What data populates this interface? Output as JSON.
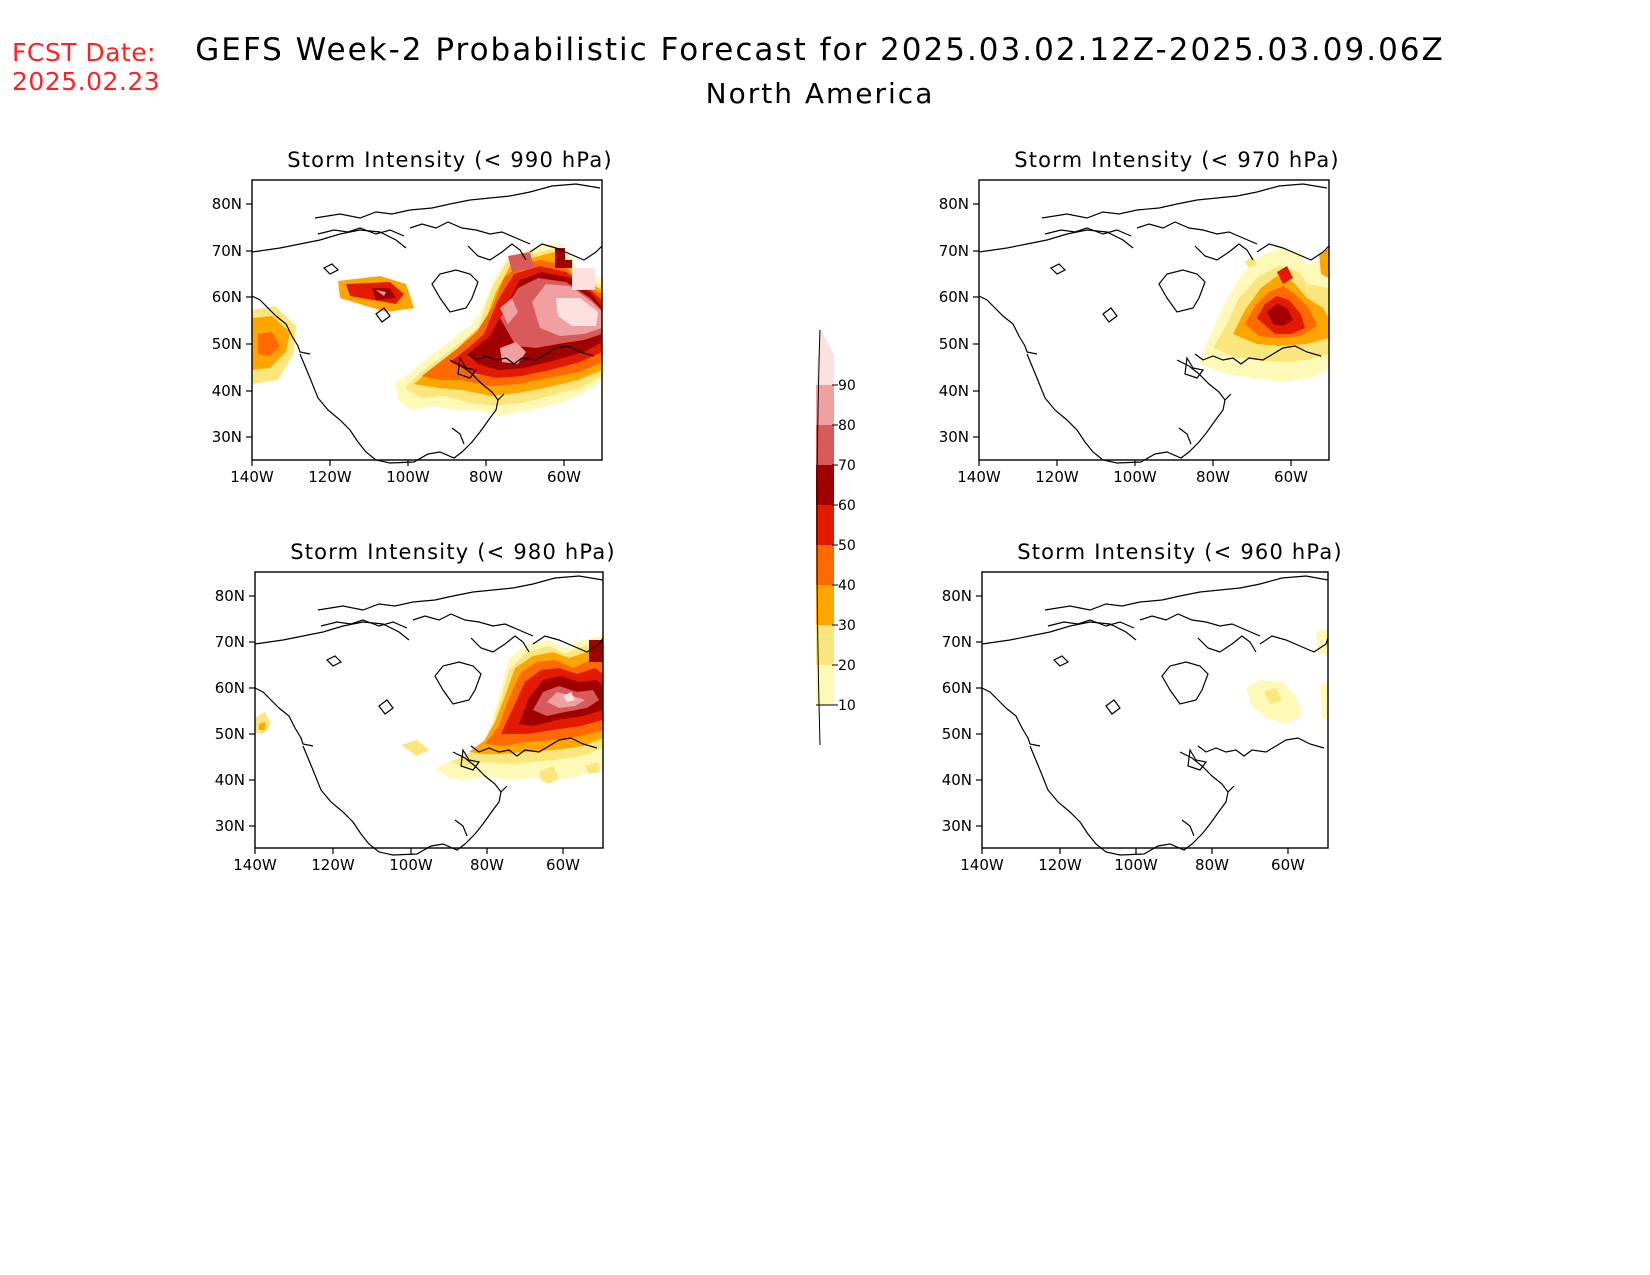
{
  "header": {
    "fcst_line1": "FCST Date:",
    "fcst_line2": "2025.02.23",
    "title": "GEFS Week-2 Probabilistic Forecast for 2025.03.02.12Z-2025.03.09.06Z",
    "subtitle": "North America"
  },
  "colors": {
    "text_red": "#ff2222",
    "levels": [
      "#fff9b8",
      "#fbe67e",
      "#ffa500",
      "#ff6a00",
      "#e21a00",
      "#a00000",
      "#d85a5a",
      "#f0a0a0",
      "#fde0e0"
    ]
  },
  "colorbar": {
    "labels": [
      "10",
      "20",
      "30",
      "40",
      "50",
      "60",
      "70",
      "80",
      "90"
    ]
  },
  "axes": {
    "lat_labels": [
      "80N",
      "70N",
      "60N",
      "50N",
      "40N",
      "30N"
    ],
    "lon_labels": [
      "140W",
      "120W",
      "100W",
      "80W",
      "60W"
    ]
  },
  "panels": [
    {
      "id": "p990",
      "title": "Storm Intensity (< 990 hPa)"
    },
    {
      "id": "p970",
      "title": "Storm Intensity (< 970 hPa)"
    },
    {
      "id": "p980",
      "title": "Storm Intensity (< 980 hPa)"
    },
    {
      "id": "p960",
      "title": "Storm Intensity (< 960 hPa)"
    }
  ]
}
